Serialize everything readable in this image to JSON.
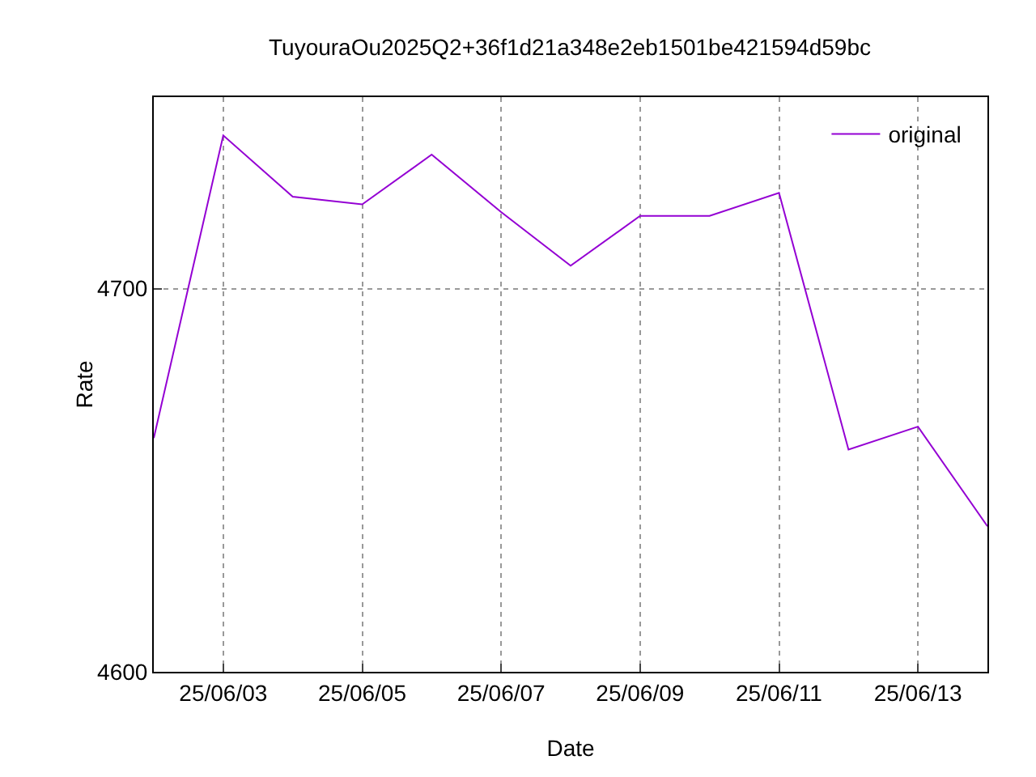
{
  "chart_data": {
    "type": "line",
    "title": "TuyouraOu2025Q2+36f1d21a348e2eb1501be421594d59bc",
    "xlabel": "Date",
    "ylabel": "Rate",
    "x": [
      "2025-06-02",
      "2025-06-03",
      "2025-06-04",
      "2025-06-05",
      "2025-06-06",
      "2025-06-07",
      "2025-06-08",
      "2025-06-09",
      "2025-06-10",
      "2025-06-11",
      "2025-06-12",
      "2025-06-13",
      "2025-06-14"
    ],
    "series": [
      {
        "name": "original",
        "color": "#9400d3",
        "values": [
          4661,
          4740,
          4724,
          4722,
          4735,
          4720,
          4706,
          4719,
          4719,
          4725,
          4658,
          4664,
          4638
        ]
      }
    ],
    "xlim": [
      "2025-06-02",
      "2025-06-14"
    ],
    "xticks": [
      {
        "value": "2025-06-03",
        "label": "25/06/03"
      },
      {
        "value": "2025-06-05",
        "label": "25/06/05"
      },
      {
        "value": "2025-06-07",
        "label": "25/06/07"
      },
      {
        "value": "2025-06-09",
        "label": "25/06/09"
      },
      {
        "value": "2025-06-11",
        "label": "25/06/11"
      },
      {
        "value": "2025-06-13",
        "label": "25/06/13"
      }
    ],
    "ylim": [
      4600,
      4750
    ],
    "yticks": [
      4600,
      4700
    ],
    "grid": true,
    "legend": "top right",
    "marker": "none",
    "line_style": "solid"
  }
}
